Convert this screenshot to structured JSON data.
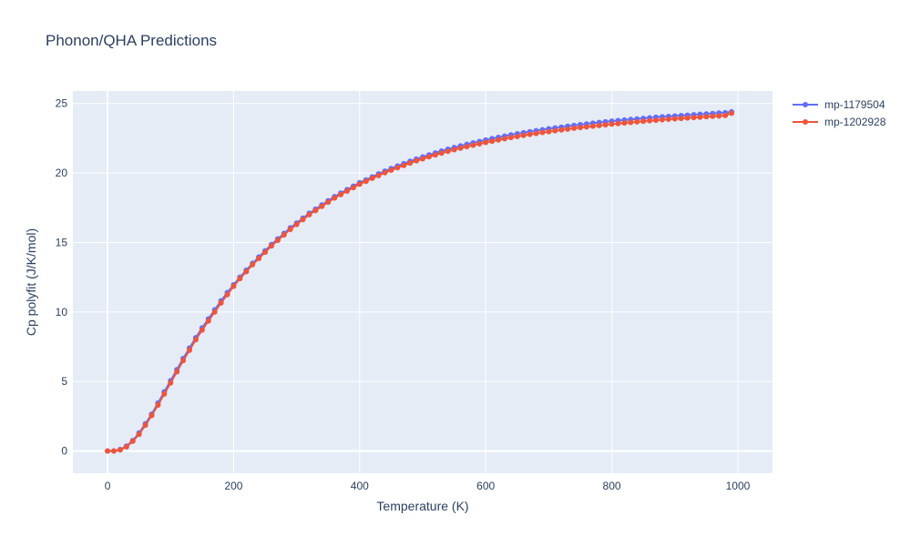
{
  "chart_data": {
    "type": "line",
    "title": "Phonon/QHA Predictions",
    "xlabel": "Temperature (K)",
    "ylabel": "Cp polyfit (J/K/mol)",
    "xlim": [
      -55,
      1055
    ],
    "ylim": [
      -1.6,
      25.9
    ],
    "x_ticks": [
      0,
      200,
      400,
      600,
      800,
      1000
    ],
    "y_ticks": [
      0,
      5,
      10,
      15,
      20,
      25
    ],
    "grid": true,
    "legend_position": "top-right",
    "x": [
      0,
      10,
      20,
      30,
      40,
      50,
      60,
      70,
      80,
      90,
      100,
      110,
      120,
      130,
      140,
      150,
      160,
      170,
      180,
      190,
      200,
      210,
      220,
      230,
      240,
      250,
      260,
      270,
      280,
      290,
      300,
      310,
      320,
      330,
      340,
      350,
      360,
      370,
      380,
      390,
      400,
      410,
      420,
      430,
      440,
      450,
      460,
      470,
      480,
      490,
      500,
      510,
      520,
      530,
      540,
      550,
      560,
      570,
      580,
      590,
      600,
      610,
      620,
      630,
      640,
      650,
      660,
      670,
      680,
      690,
      700,
      710,
      720,
      730,
      740,
      750,
      760,
      770,
      780,
      790,
      800,
      810,
      820,
      830,
      840,
      850,
      860,
      870,
      880,
      890,
      900,
      910,
      920,
      930,
      940,
      950,
      960,
      970,
      980,
      990
    ],
    "series": [
      {
        "name": "mp-1179504",
        "color": "#636efa",
        "values": [
          0,
          0,
          0.1,
          0.35,
          0.75,
          1.3,
          1.95,
          2.65,
          3.45,
          4.25,
          5.05,
          5.85,
          6.65,
          7.4,
          8.15,
          8.85,
          9.5,
          10.15,
          10.8,
          11.4,
          11.95,
          12.5,
          13.0,
          13.5,
          13.95,
          14.4,
          14.85,
          15.25,
          15.65,
          16.05,
          16.4,
          16.75,
          17.1,
          17.4,
          17.7,
          18.0,
          18.3,
          18.55,
          18.8,
          19.05,
          19.3,
          19.5,
          19.72,
          19.93,
          20.13,
          20.32,
          20.5,
          20.67,
          20.84,
          21.0,
          21.15,
          21.3,
          21.44,
          21.58,
          21.71,
          21.83,
          21.95,
          22.06,
          22.17,
          22.27,
          22.37,
          22.47,
          22.56,
          22.65,
          22.74,
          22.82,
          22.9,
          22.97,
          23.04,
          23.11,
          23.18,
          23.24,
          23.3,
          23.36,
          23.42,
          23.48,
          23.53,
          23.58,
          23.63,
          23.68,
          23.73,
          23.77,
          23.81,
          23.85,
          23.89,
          23.93,
          23.97,
          24.01,
          24.04,
          24.07,
          24.1,
          24.13,
          24.16,
          24.19,
          24.22,
          24.25,
          24.28,
          24.31,
          24.34,
          24.4
        ]
      },
      {
        "name": "mp-1202928",
        "color": "#ef553b",
        "values": [
          0,
          0,
          0.08,
          0.3,
          0.7,
          1.2,
          1.85,
          2.55,
          3.3,
          4.1,
          4.9,
          5.7,
          6.5,
          7.25,
          8.0,
          8.7,
          9.35,
          10.0,
          10.65,
          11.25,
          11.85,
          12.4,
          12.9,
          13.4,
          13.85,
          14.3,
          14.75,
          15.15,
          15.55,
          15.95,
          16.3,
          16.65,
          17.0,
          17.3,
          17.6,
          17.9,
          18.2,
          18.45,
          18.7,
          18.95,
          19.2,
          19.4,
          19.62,
          19.82,
          20.02,
          20.2,
          20.38,
          20.55,
          20.72,
          20.88,
          21.02,
          21.17,
          21.3,
          21.43,
          21.56,
          21.68,
          21.79,
          21.9,
          22.0,
          22.1,
          22.2,
          22.29,
          22.38,
          22.47,
          22.55,
          22.63,
          22.71,
          22.78,
          22.85,
          22.92,
          22.98,
          23.04,
          23.1,
          23.16,
          23.22,
          23.27,
          23.32,
          23.37,
          23.42,
          23.47,
          23.52,
          23.56,
          23.6,
          23.64,
          23.68,
          23.72,
          23.76,
          23.8,
          23.84,
          23.87,
          23.9,
          23.93,
          23.96,
          23.99,
          24.02,
          24.05,
          24.08,
          24.11,
          24.14,
          24.3
        ]
      }
    ]
  }
}
